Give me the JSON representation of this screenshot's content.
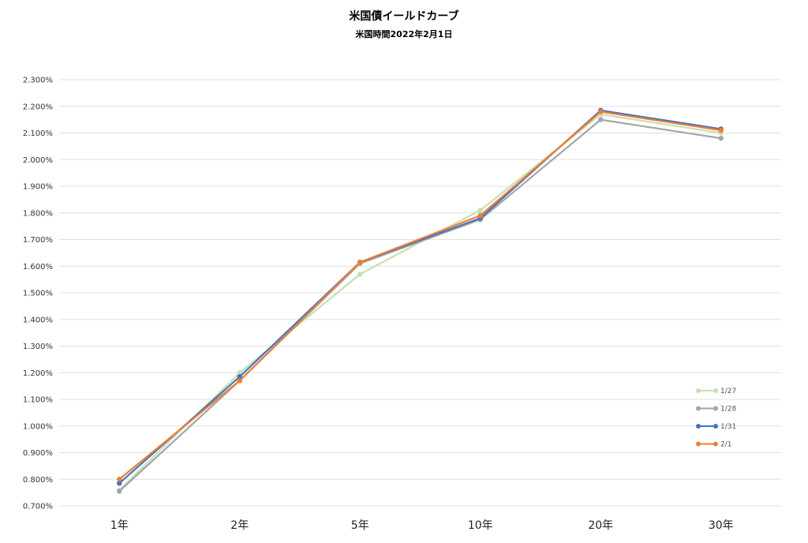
{
  "chart_data": {
    "type": "line",
    "title": "米国債イールドカーブ",
    "subtitle": "米国時間2022年2月1日",
    "categories": [
      "1年",
      "2年",
      "5年",
      "10年",
      "20年",
      "30年"
    ],
    "ylim": [
      0.7,
      2.3
    ],
    "yticks": [
      "0.700%",
      "0.800%",
      "0.900%",
      "1.000%",
      "1.100%",
      "1.200%",
      "1.300%",
      "1.400%",
      "1.500%",
      "1.600%",
      "1.700%",
      "1.800%",
      "1.900%",
      "2.000%",
      "2.100%",
      "2.200%",
      "2.300%"
    ],
    "grid": true,
    "legend_position": "bottom-right",
    "series": [
      {
        "name": "1/27",
        "color": "#c5e0b4",
        "values": [
          0.76,
          1.2,
          1.57,
          1.81,
          2.17,
          2.1
        ]
      },
      {
        "name": "1/28",
        "color": "#a5a5a5",
        "values": [
          0.755,
          1.17,
          1.61,
          1.775,
          2.15,
          2.08
        ]
      },
      {
        "name": "1/31",
        "color": "#4472c4",
        "values": [
          0.785,
          1.185,
          1.615,
          1.78,
          2.185,
          2.115
        ]
      },
      {
        "name": "2/1",
        "color": "#ed7d31",
        "values": [
          0.8,
          1.17,
          1.615,
          1.79,
          2.18,
          2.11
        ]
      }
    ]
  }
}
